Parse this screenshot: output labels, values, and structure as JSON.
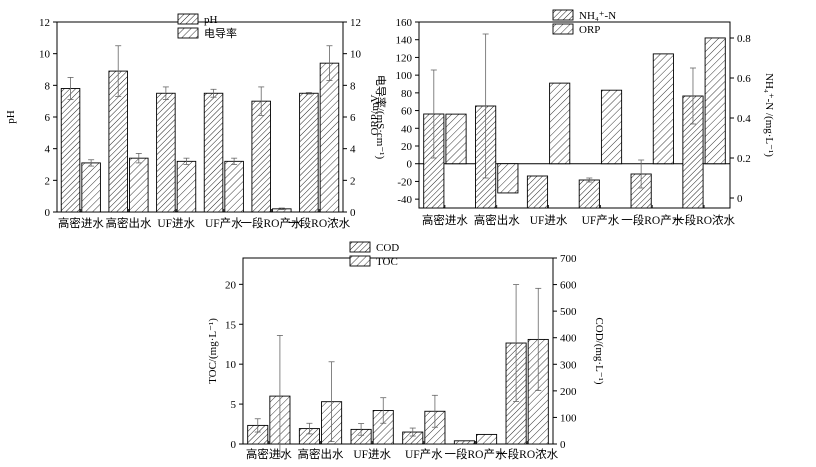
{
  "chart_data": [
    {
      "type": "bar",
      "categories": [
        "高密进水",
        "高密出水",
        "UF进水",
        "UF产水",
        "一段RO产水",
        "一段RO浓水"
      ],
      "series": [
        {
          "name": "pH",
          "axis": "left",
          "pattern": "hatch-a",
          "values": [
            7.8,
            8.9,
            7.5,
            7.5,
            7.0,
            7.5
          ],
          "errors": [
            0.7,
            1.6,
            0.4,
            0.25,
            0.9,
            0.05
          ]
        },
        {
          "name": "电导率",
          "axis": "right",
          "pattern": "hatch-b",
          "values": [
            3.1,
            3.4,
            3.2,
            3.2,
            0.2,
            9.4
          ],
          "errors": [
            0.2,
            0.3,
            0.2,
            0.2,
            0.05,
            1.1
          ]
        }
      ],
      "ylabel_left": "pH",
      "ylabel_right": "电导率/(mS·cm⁻¹)",
      "ylim_left": [
        0,
        12
      ],
      "yticks_left": [
        "0",
        "2",
        "4",
        "6",
        "8",
        "10",
        "12"
      ],
      "ylim_right": [
        0,
        12
      ],
      "yticks_right": [
        "0",
        "2",
        "4",
        "6",
        "8",
        "10",
        "12"
      ],
      "legend": [
        "pH",
        "电导率"
      ]
    },
    {
      "type": "bar",
      "categories": [
        "高密进水",
        "高密出水",
        "UF进水",
        "UF产水",
        "一段RO产水",
        "一段RO浓水"
      ],
      "series": [
        {
          "name": "NH₄⁺-N",
          "axis": "right",
          "pattern": "hatch-a",
          "values": [
            0.42,
            0.46,
            0.11,
            0.09,
            0.12,
            0.51
          ],
          "errors": [
            0.22,
            0.36,
            0.0,
            0.01,
            0.07,
            0.14
          ]
        },
        {
          "name": "ORP",
          "axis": "left",
          "pattern": "hatch-b",
          "values": [
            56,
            -33,
            91,
            83,
            124,
            142
          ],
          "errors": [
            0,
            0,
            0,
            0,
            0,
            0
          ]
        }
      ],
      "ylabel_left": "ORP/mV",
      "ylabel_right": "NH₄⁺-N /(mg·L⁻¹)",
      "ylim_left": [
        -50,
        160
      ],
      "yticks_left": [
        "-40",
        "-20",
        "0",
        "20",
        "40",
        "60",
        "80",
        "100",
        "120",
        "140",
        "160"
      ],
      "ylim_right": [
        -0.05,
        0.88
      ],
      "yticks_right": [
        "0",
        "0.2",
        "0.4",
        "0.6",
        "0.8"
      ],
      "baseline_right": 0.2,
      "legend": [
        "NH₄⁺-N",
        "ORP"
      ]
    },
    {
      "type": "bar",
      "categories": [
        "高密进水",
        "高密出水",
        "UF进水",
        "UF产水",
        "一段RO产水",
        "一段RO浓水"
      ],
      "series": [
        {
          "name": "COD",
          "axis": "right",
          "pattern": "hatch-a",
          "values": [
            70,
            58,
            55,
            45,
            12,
            380
          ],
          "errors": [
            25,
            20,
            22,
            15,
            0,
            220
          ]
        },
        {
          "name": "TOC",
          "axis": "left",
          "pattern": "hatch-b",
          "values": [
            6.0,
            5.3,
            4.2,
            4.1,
            1.2,
            13.1
          ],
          "errors": [
            7.6,
            5.0,
            1.6,
            2.0,
            0,
            6.4
          ]
        }
      ],
      "ylabel_left": "TOC/(mg·L⁻¹)",
      "ylabel_right": "COD/(mg·L⁻¹)",
      "ylim_left": [
        0,
        23.3
      ],
      "yticks_left": [
        "0",
        "5",
        "10",
        "15",
        "20"
      ],
      "ylim_right": [
        0,
        700
      ],
      "yticks_right": [
        "0",
        "100",
        "200",
        "300",
        "400",
        "500",
        "600",
        "700"
      ],
      "legend": [
        "COD",
        "TOC"
      ]
    }
  ]
}
